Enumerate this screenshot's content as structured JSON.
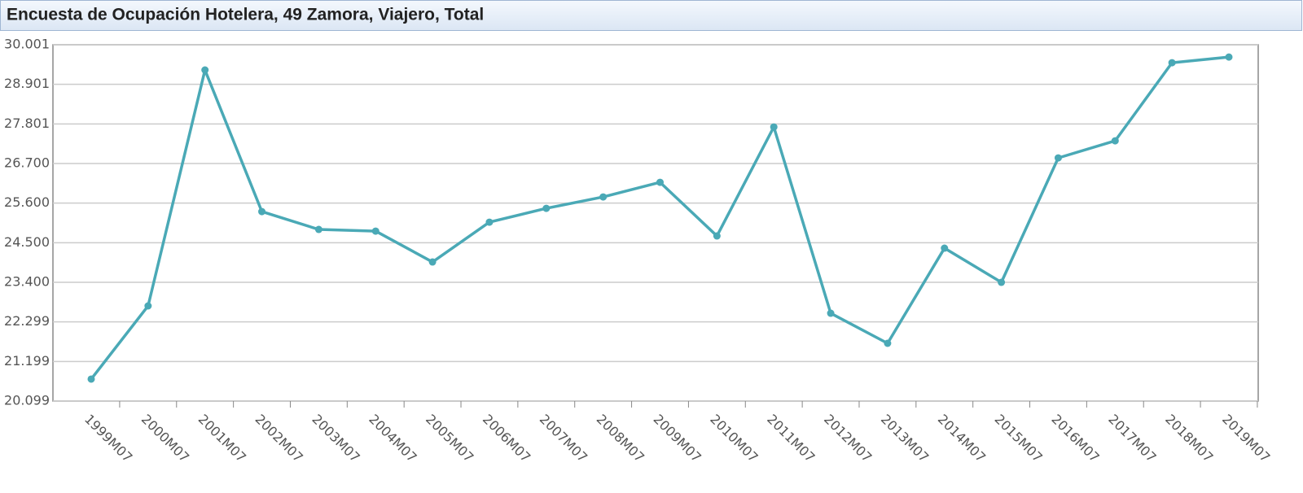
{
  "chart_data": {
    "type": "line",
    "title": "Encuesta de Ocupación Hotelera, 49 Zamora, Viajero, Total",
    "categories": [
      "1999M07",
      "2000M07",
      "2001M07",
      "2002M07",
      "2003M07",
      "2004M07",
      "2005M07",
      "2006M07",
      "2007M07",
      "2008M07",
      "2009M07",
      "2010M07",
      "2011M07",
      "2012M07",
      "2013M07",
      "2014M07",
      "2015M07",
      "2016M07",
      "2017M07",
      "2018M07",
      "2019M07"
    ],
    "values": [
      20710,
      22744,
      29299,
      25365,
      24868,
      24822,
      23964,
      25071,
      25455,
      25772,
      26178,
      24687,
      27715,
      22540,
      21704,
      24348,
      23399,
      26856,
      27331,
      29501,
      29659
    ],
    "color": "#4aa9b6",
    "ylim": [
      20099,
      30001
    ],
    "yticks": [
      {
        "value": 20099,
        "label": "20.099"
      },
      {
        "value": 21199,
        "label": "21.199"
      },
      {
        "value": 22299,
        "label": "22.299"
      },
      {
        "value": 23400,
        "label": "23.400"
      },
      {
        "value": 24500,
        "label": "24.500"
      },
      {
        "value": 25600,
        "label": "25.600"
      },
      {
        "value": 26700,
        "label": "26.700"
      },
      {
        "value": 27801,
        "label": "27.801"
      },
      {
        "value": 28901,
        "label": "28.901"
      },
      {
        "value": 30001,
        "label": "30.001"
      }
    ],
    "grid": true
  }
}
